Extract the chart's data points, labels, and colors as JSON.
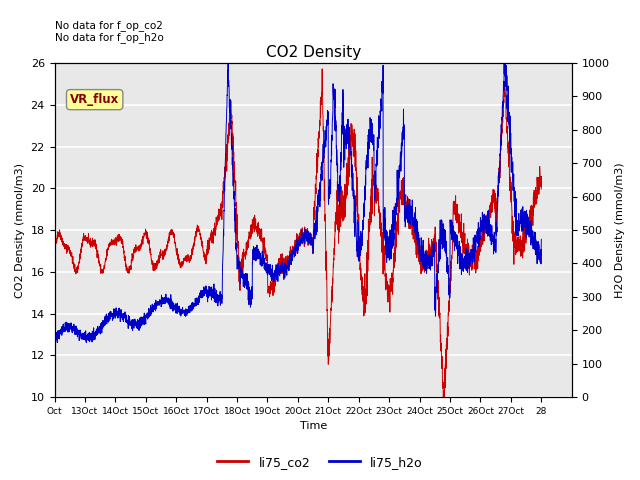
{
  "title": "CO2 Density",
  "xlabel": "Time",
  "ylabel_left": "CO2 Density (mmol/m3)",
  "ylabel_right": "H2O Density (mmol/m3)",
  "annotation_line1": "No data for f_op_co2",
  "annotation_line2": "No data for f_op_h2o",
  "vr_flux_label": "VR_flux",
  "xlim": [
    0,
    17
  ],
  "ylim_left": [
    10,
    26
  ],
  "ylim_right": [
    0,
    1000
  ],
  "xtick_labels": [
    "Oct",
    "13Oct",
    "14Oct",
    "15Oct",
    "16Oct",
    "17Oct",
    "18Oct",
    "19Oct",
    "20Oct",
    "21Oct",
    "22Oct",
    "23Oct",
    "24Oct",
    "25Oct",
    "26Oct",
    "27Oct",
    "28"
  ],
  "xtick_positions": [
    0,
    1,
    2,
    3,
    4,
    5,
    6,
    7,
    8,
    9,
    10,
    11,
    12,
    13,
    14,
    15,
    16
  ],
  "background_color": "#e8e8e8",
  "color_co2": "#cc0000",
  "color_h2o": "#0000cc",
  "legend_co2": "li75_co2",
  "legend_h2o": "li75_h2o",
  "grid_color": "white",
  "vr_flux_bg": "#ffff99",
  "vr_flux_border": "#888888",
  "vr_flux_text": "#880000",
  "fig_width": 6.4,
  "fig_height": 4.8,
  "dpi": 100
}
